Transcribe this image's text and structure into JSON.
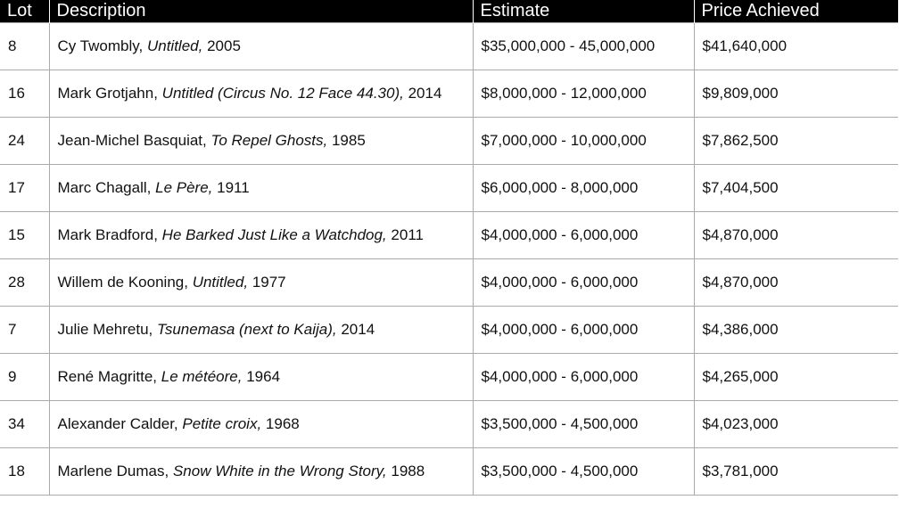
{
  "table": {
    "header": [
      "Lot",
      "Description",
      "Estimate",
      "Price Achieved"
    ],
    "rows": [
      {
        "lot": "8",
        "artist": "Cy Twombly,",
        "title": "Untitled,",
        "year": "2005",
        "estimate": "$35,000,000 - 45,000,000",
        "price": "$41,640,000"
      },
      {
        "lot": "16",
        "artist": "Mark Grotjahn,",
        "title": "Untitled (Circus No. 12 Face 44.30),",
        "year": "2014",
        "estimate": "$8,000,000 - 12,000,000",
        "price": "$9,809,000"
      },
      {
        "lot": "24",
        "artist": "Jean-Michel Basquiat,",
        "title": "To Repel Ghosts,",
        "year": "1985",
        "estimate": "$7,000,000 - 10,000,000",
        "price": "$7,862,500"
      },
      {
        "lot": "17",
        "artist": "Marc Chagall,",
        "title": "Le Père,",
        "year": "1911",
        "estimate": "$6,000,000 - 8,000,000",
        "price": "$7,404,500"
      },
      {
        "lot": "15",
        "artist": "Mark Bradford,",
        "title": "He Barked Just Like a Watchdog,",
        "year": "2011",
        "estimate": "$4,000,000 - 6,000,000",
        "price": "$4,870,000"
      },
      {
        "lot": "28",
        "artist": "Willem de Kooning,",
        "title": "Untitled,",
        "year": "1977",
        "estimate": "$4,000,000 - 6,000,000",
        "price": "$4,870,000"
      },
      {
        "lot": "7",
        "artist": "Julie Mehretu,",
        "title": "Tsunemasa (next to Kaija),",
        "year": "2014",
        "estimate": "$4,000,000 - 6,000,000",
        "price": "$4,386,000"
      },
      {
        "lot": "9",
        "artist": "René Magritte,",
        "title": "Le météore,",
        "year": "1964",
        "estimate": "$4,000,000 - 6,000,000",
        "price": "$4,265,000"
      },
      {
        "lot": "34",
        "artist": "Alexander Calder,",
        "title": "Petite croix,",
        "year": "1968",
        "estimate": "$3,500,000 - 4,500,000",
        "price": "$4,023,000"
      },
      {
        "lot": "18",
        "artist": "Marlene Dumas,",
        "title": "Snow White in the Wrong Story,",
        "year": "1988",
        "estimate": "$3,500,000 - 4,500,000",
        "price": "$3,781,000"
      }
    ]
  }
}
